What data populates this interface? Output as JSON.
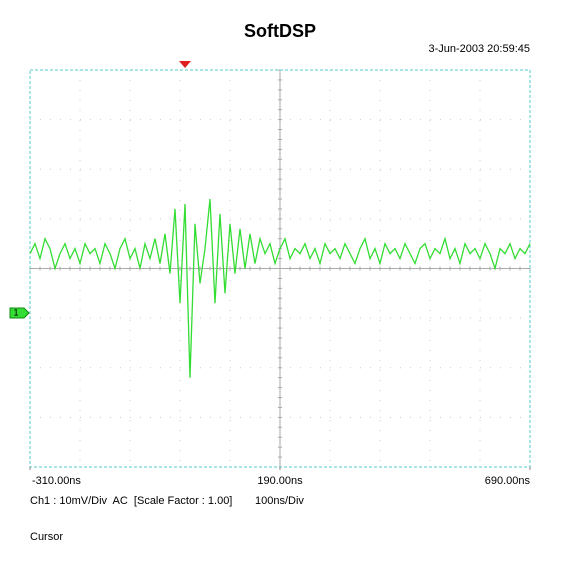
{
  "chart_data": {
    "type": "line",
    "title": "SoftDSP",
    "timestamp": "3-Jun-2003 20:59:45",
    "channel_info": "Ch1 : 10mV/Div  AC  [Scale Factor : 1.00]",
    "timebase": "100ns/Div",
    "cursor_label": "Cursor",
    "channel_marker": "1",
    "color": "#33dd33",
    "x": [
      -310,
      -300,
      -290,
      -280,
      -270,
      -260,
      -250,
      -240,
      -230,
      -220,
      -210,
      -200,
      -190,
      -180,
      -170,
      -160,
      -150,
      -140,
      -130,
      -120,
      -110,
      -100,
      -90,
      -80,
      -70,
      -60,
      -50,
      -40,
      -30,
      -20,
      -10,
      0,
      10,
      20,
      30,
      40,
      50,
      60,
      70,
      80,
      90,
      100,
      110,
      120,
      130,
      140,
      150,
      160,
      170,
      180,
      190,
      200,
      210,
      220,
      230,
      240,
      250,
      260,
      270,
      280,
      290,
      300,
      310,
      320,
      330,
      340,
      350,
      360,
      370,
      380,
      390,
      400,
      410,
      420,
      430,
      440,
      450,
      460,
      470,
      480,
      490,
      500,
      510,
      520,
      530,
      540,
      550,
      560,
      570,
      580,
      590,
      600,
      610,
      620,
      630,
      640,
      650,
      660,
      670,
      680,
      690
    ],
    "values": [
      12,
      14,
      11,
      15,
      13,
      9,
      12,
      14,
      11,
      13,
      10,
      14,
      12,
      13,
      10,
      14,
      12,
      9,
      13,
      15,
      11,
      13,
      9,
      14,
      11,
      15,
      10,
      16,
      8,
      21,
      2,
      22,
      -13,
      18,
      6,
      13,
      23,
      2,
      20,
      4,
      18,
      8,
      17,
      9,
      16,
      10,
      15,
      12,
      14,
      10,
      13,
      15,
      11,
      13,
      12,
      14,
      11,
      13,
      10,
      14,
      12,
      13,
      11,
      14,
      12,
      10,
      13,
      15,
      11,
      13,
      10,
      14,
      12,
      13,
      11,
      14,
      12,
      10,
      13,
      14,
      11,
      13,
      12,
      15,
      11,
      13,
      10,
      14,
      12,
      13,
      11,
      14,
      12,
      9,
      13,
      12,
      14,
      11,
      13,
      12,
      14
    ],
    "xlim": [
      -310,
      690
    ],
    "ylim": [
      -31,
      49
    ],
    "xticks": [
      {
        "value": -310,
        "label": "-310.00ns"
      },
      {
        "value": 190,
        "label": "190.00ns"
      },
      {
        "value": 690,
        "label": "690.00ns"
      }
    ]
  }
}
